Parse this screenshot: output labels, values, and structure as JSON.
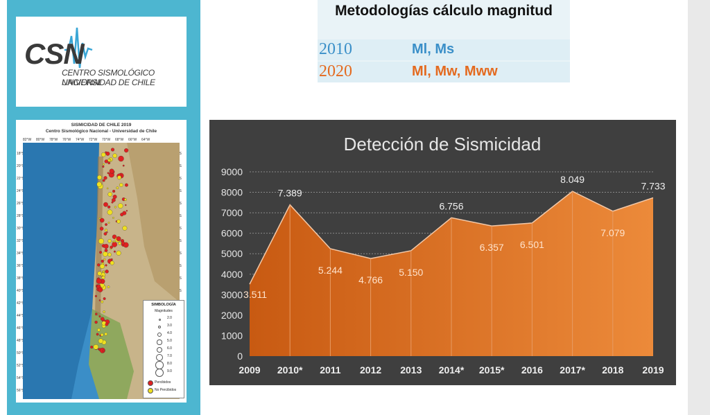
{
  "logo": {
    "acronym": "CSN",
    "line1": "CENTRO SISMOLÓGICO NACIONAL",
    "line2": "UNIVERSIDAD DE CHILE"
  },
  "map": {
    "title": "SISMICIDAD DE CHILE   2019",
    "subtitle": "Centro Sismológico Nacional - Universidad de Chile",
    "lon_labels": [
      "82°W",
      "80°W",
      "78°W",
      "76°W",
      "74°W",
      "72°W",
      "70°W",
      "68°W",
      "66°W",
      "64°W"
    ],
    "lat_labels": [
      "18°S",
      "20°S",
      "22°S",
      "24°S",
      "26°S",
      "28°S",
      "30°S",
      "32°S",
      "34°S",
      "36°S",
      "38°S",
      "40°S",
      "42°S",
      "44°S",
      "46°S",
      "48°S",
      "50°S",
      "52°S",
      "54°S",
      "56°S"
    ],
    "legend": {
      "title": "SIMBOLOGÍA",
      "subtitle": "Magnitudes",
      "magnitudes": [
        "2.0",
        "3.0",
        "4.0",
        "5.0",
        "6.0",
        "7.0",
        "8.0",
        "9.0"
      ],
      "categories": [
        {
          "label": "Percibidos",
          "color": "#e02020"
        },
        {
          "label": "No Percibidos",
          "color": "#f0e020"
        }
      ]
    }
  },
  "methodology": {
    "title": "Metodologías cálculo magnitud",
    "rows": [
      {
        "year": "2010",
        "value": "Ml, Ms",
        "color": "#3a8fc8"
      },
      {
        "year": "2020",
        "value": "Ml, Mw, Mww",
        "color": "#e46a1f"
      }
    ]
  },
  "chart_data": {
    "type": "area",
    "title": "Detección de Sismicidad",
    "categories": [
      "2009",
      "2010*",
      "2011",
      "2012",
      "2013",
      "2014*",
      "2015*",
      "2016",
      "2017*",
      "2018",
      "2019"
    ],
    "values": [
      3511,
      7389,
      5244,
      4766,
      5150,
      6756,
      6357,
      6501,
      8049,
      7079,
      7733
    ],
    "labels": [
      "3.511",
      "7.389",
      "5.244",
      "4.766",
      "5.150",
      "6.756",
      "6.357",
      "6.501",
      "8.049",
      "7.079",
      "7.733"
    ],
    "yticks": [
      "0",
      "1000",
      "2000",
      "3000",
      "4000",
      "5000",
      "6000",
      "7000",
      "8000",
      "9000"
    ],
    "ylim": [
      0,
      9000
    ],
    "grid": true,
    "colors": {
      "fill": "#d9691e",
      "background": "#3f3f3f"
    }
  }
}
